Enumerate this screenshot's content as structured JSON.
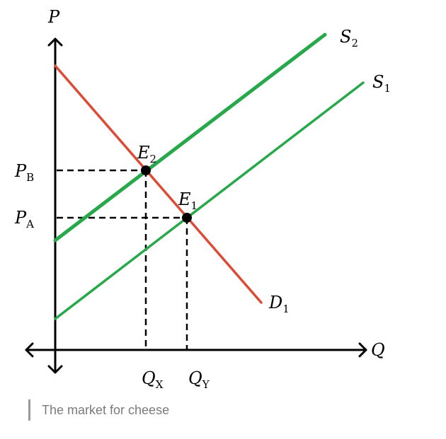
{
  "diagram": {
    "axis_labels": {
      "price_axis": "P",
      "quantity_axis": "Q"
    },
    "price_labels": {
      "pb_main": "P",
      "pb_sub": "B",
      "pa_main": "P",
      "pa_sub": "A"
    },
    "quantity_labels": {
      "qx_main": "Q",
      "qx_sub": "X",
      "qy_main": "Q",
      "qy_sub": "Y"
    },
    "curves": {
      "supply_2_main": "S",
      "supply_2_sub": "2",
      "supply_1_main": "S",
      "supply_1_sub": "1",
      "demand_1_main": "D",
      "demand_1_sub": "1"
    },
    "equilibria": {
      "e2_main": "E",
      "e2_sub": "2",
      "e1_main": "E",
      "e1_sub": "1"
    },
    "colors": {
      "supply": "#27a84a",
      "demand": "#dc4b35",
      "axis": "#000000"
    }
  },
  "caption": {
    "text": "The market for cheese"
  }
}
